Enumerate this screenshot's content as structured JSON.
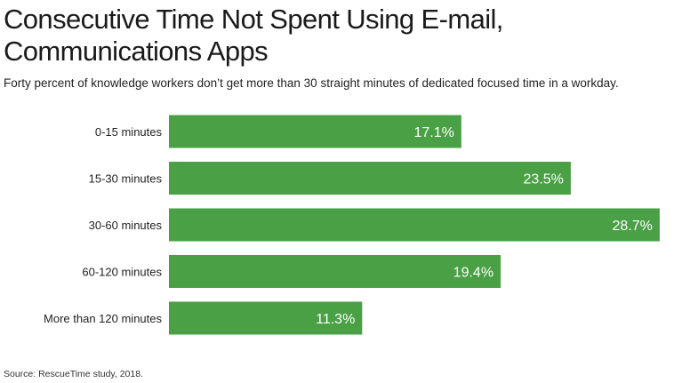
{
  "title": "Consecutive Time Not Spent Using E-mail, Communications Apps",
  "subtitle": "Forty percent of knowledge workers don’t get more than 30 straight minutes of dedicated focused time in a workday.",
  "source": "Source: RescueTime study, 2018.",
  "chart_data": {
    "type": "bar",
    "orientation": "horizontal",
    "title": "Consecutive Time Not Spent Using E-mail, Communications Apps",
    "subtitle": "Forty percent of knowledge workers don’t get more than 30 straight minutes of dedicated focused time in a workday.",
    "categories": [
      "0-15 minutes",
      "15-30 minutes",
      "30-60 minutes",
      "60-120 minutes",
      "More than 120 minutes"
    ],
    "values": [
      17.1,
      23.5,
      28.7,
      19.4,
      11.3
    ],
    "value_labels": [
      "17.1%",
      "23.5%",
      "28.7%",
      "19.4%",
      "11.3%"
    ],
    "bar_color": "#4aa045",
    "grid": false,
    "legend": "none"
  }
}
